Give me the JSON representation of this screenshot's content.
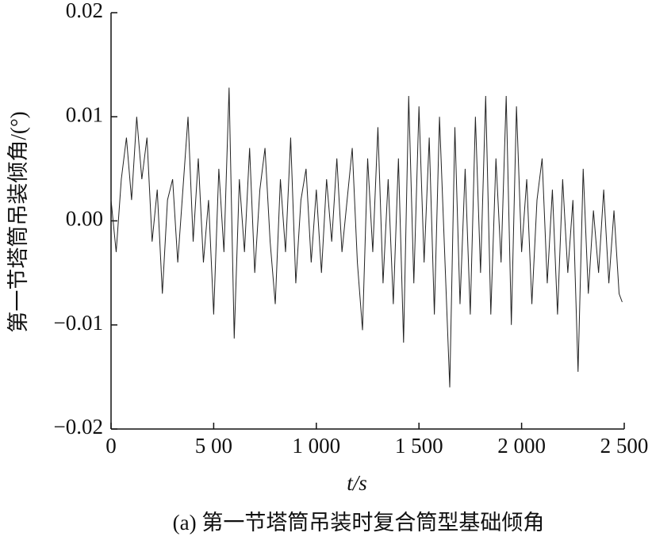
{
  "chart_data": {
    "type": "line",
    "caption": "(a) 第一节塔筒吊装时复合筒型基础倾角",
    "xlabel": "t/s",
    "ylabel": "第一节塔筒吊装倾角/(°)",
    "x": [
      0,
      25,
      50,
      75,
      100,
      125,
      150,
      175,
      200,
      225,
      250,
      275,
      300,
      325,
      350,
      375,
      400,
      425,
      450,
      475,
      500,
      525,
      550,
      575,
      600,
      625,
      650,
      675,
      700,
      725,
      750,
      775,
      800,
      825,
      850,
      875,
      900,
      925,
      950,
      975,
      1000,
      1025,
      1050,
      1075,
      1100,
      1125,
      1150,
      1175,
      1200,
      1225,
      1250,
      1275,
      1300,
      1325,
      1350,
      1375,
      1400,
      1425,
      1450,
      1475,
      1500,
      1525,
      1550,
      1575,
      1600,
      1625,
      1650,
      1675,
      1700,
      1725,
      1750,
      1775,
      1800,
      1825,
      1850,
      1875,
      1900,
      1925,
      1950,
      1975,
      2000,
      2025,
      2050,
      2075,
      2100,
      2125,
      2150,
      2175,
      2200,
      2225,
      2250,
      2275,
      2300,
      2325,
      2350,
      2375,
      2400,
      2425,
      2450,
      2475,
      2490
    ],
    "series": [
      {
        "color": "#222222",
        "values": [
          0.002,
          -0.003,
          0.004,
          0.008,
          0.002,
          0.01,
          0.004,
          0.008,
          -0.002,
          0.003,
          -0.007,
          0.002,
          0.004,
          -0.004,
          0.003,
          0.01,
          -0.002,
          0.006,
          -0.004,
          0.002,
          -0.009,
          0.005,
          -0.003,
          0.0128,
          -0.0113,
          0.004,
          -0.003,
          0.007,
          -0.005,
          0.003,
          0.007,
          -0.002,
          -0.008,
          0.004,
          -0.003,
          0.008,
          -0.006,
          0.002,
          0.005,
          -0.004,
          0.003,
          -0.005,
          0.004,
          -0.002,
          0.006,
          -0.003,
          0.002,
          0.007,
          -0.004,
          -0.0105,
          0.006,
          -0.003,
          0.009,
          -0.006,
          0.004,
          -0.008,
          0.006,
          -0.0117,
          0.012,
          -0.006,
          0.011,
          -0.004,
          0.008,
          -0.009,
          0.01,
          -0.003,
          -0.016,
          0.009,
          -0.008,
          0.005,
          -0.009,
          0.01,
          -0.005,
          0.012,
          -0.009,
          0.006,
          -0.004,
          0.012,
          -0.01,
          0.011,
          -0.003,
          0.004,
          -0.008,
          0.002,
          0.006,
          -0.006,
          0.003,
          -0.009,
          0.004,
          -0.005,
          0.002,
          -0.0145,
          0.005,
          -0.007,
          0.001,
          -0.005,
          0.003,
          -0.006,
          0.001,
          -0.007,
          -0.0078
        ]
      }
    ],
    "xlim": [
      0,
      2500
    ],
    "xticks": [
      0,
      {
        "value": 500,
        "label": "5 00"
      },
      {
        "value": 1000,
        "label": "1 000"
      },
      {
        "value": 1500,
        "label": "1 500"
      },
      {
        "value": 2000,
        "label": "2 000"
      },
      {
        "value": 2500,
        "label": "2 500"
      }
    ],
    "ylim": [
      -0.02,
      0.02
    ],
    "yticks": [
      {
        "value": -0.02,
        "label": "−0.02"
      },
      {
        "value": -0.01,
        "label": "−0.01"
      },
      {
        "value": 0,
        "label": "0.00"
      },
      0.01,
      0.02
    ]
  }
}
